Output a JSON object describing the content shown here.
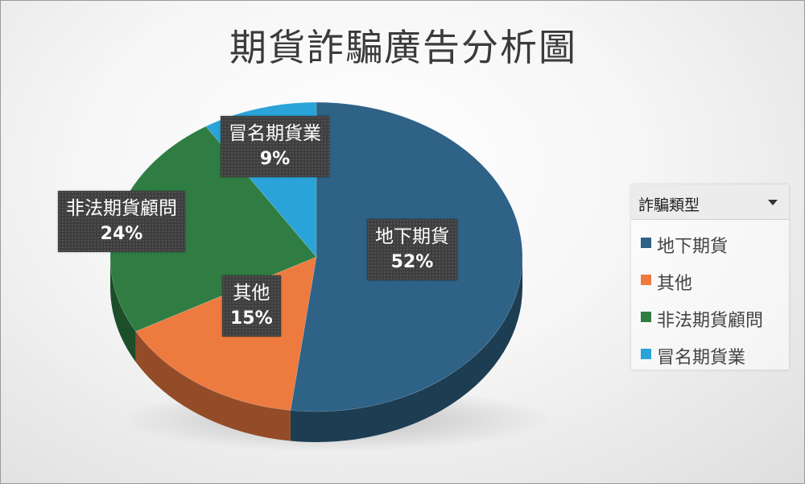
{
  "chart_data": {
    "type": "pie",
    "title": "期貨詐騙廣告分析圖",
    "categories": [
      "地下期貨",
      "其他",
      "非法期貨顧問",
      "冒名期貨業"
    ],
    "values": [
      52,
      15,
      24,
      9
    ],
    "value_labels": [
      "52%",
      "15%",
      "24%",
      "9%"
    ],
    "colors": [
      "#2e6286",
      "#ed7a3f",
      "#2f7d43",
      "#2aa3d8"
    ],
    "legend": {
      "title": "詐騙類型",
      "placement": "right",
      "items": [
        "地下期貨",
        "其他",
        "非法期貨顧問",
        "冒名期貨業"
      ]
    },
    "style": "3d-pie"
  }
}
